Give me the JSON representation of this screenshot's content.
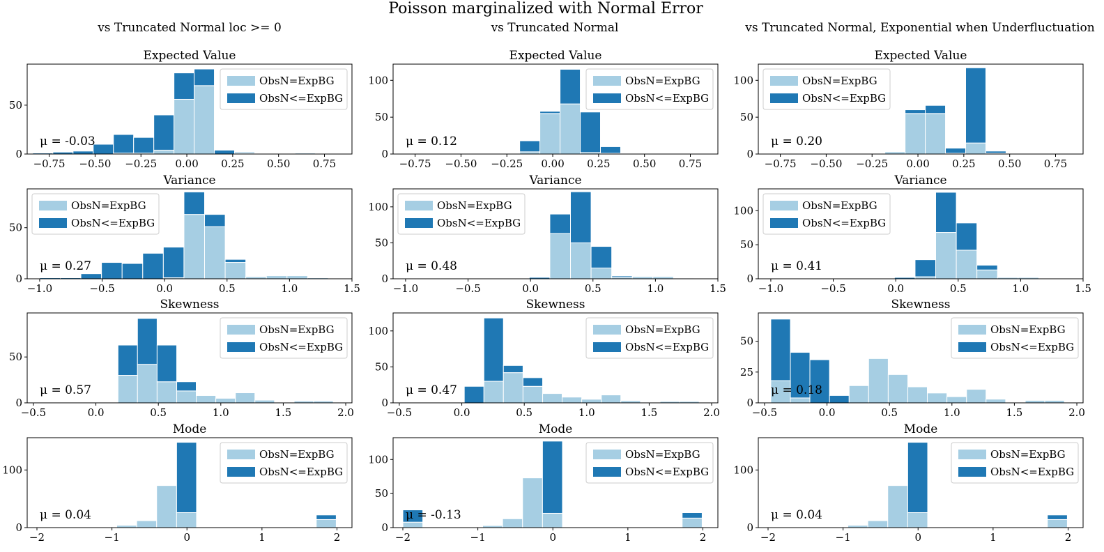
{
  "figure": {
    "suptitle": "Poisson marginalized with Normal Error",
    "column_titles": [
      "vs Truncated Normal loc >= 0",
      "vs Truncated Normal",
      "vs Truncated Normal, Exponential when Underfluctuation"
    ],
    "legend_labels": [
      "ObsN=ExpBG",
      "ObsN<=ExpBG"
    ],
    "colors": {
      "light": "#a6cee3",
      "dark": "#1f78b4"
    }
  },
  "chart_data": [
    {
      "type": "bar",
      "stacked": true,
      "title": "Expected Value",
      "mu_text": "μ = -0.03",
      "legend": "upper right",
      "xlim": [
        -0.87,
        0.9
      ],
      "ylim": [
        0,
        92
      ],
      "xticks": [
        -0.75,
        -0.5,
        -0.25,
        0,
        0.25,
        0.5,
        0.75
      ],
      "xtick_labels": [
        "−0.75",
        "−0.50",
        "−0.25",
        "0.00",
        "0.25",
        "0.50",
        "0.75"
      ],
      "yticks": [
        0,
        50
      ],
      "bin_edges": [
        -0.84,
        -0.73,
        -0.62,
        -0.51,
        -0.4,
        -0.29,
        -0.18,
        -0.07,
        0.04,
        0.15,
        0.26,
        0.37,
        0.48,
        0.59,
        0.7,
        0.81
      ],
      "series": [
        {
          "name": "ObsN=ExpBG",
          "values": [
            0,
            0,
            0,
            0,
            1,
            1,
            4,
            56,
            70,
            0,
            1,
            0,
            0,
            1,
            0
          ]
        },
        {
          "name": "ObsN<=ExpBG",
          "values": [
            1,
            2,
            3,
            10,
            19,
            16,
            36,
            27,
            17,
            4,
            1,
            0,
            0,
            0,
            0
          ]
        }
      ]
    },
    {
      "type": "bar",
      "stacked": true,
      "title": "Expected Value",
      "mu_text": "μ = 0.12",
      "legend": "upper right",
      "xlim": [
        -0.87,
        0.9
      ],
      "ylim": [
        0,
        122
      ],
      "xticks": [
        -0.75,
        -0.5,
        -0.25,
        0,
        0.25,
        0.5,
        0.75
      ],
      "xtick_labels": [
        "−0.75",
        "−0.50",
        "−0.25",
        "0.00",
        "0.25",
        "0.50",
        "0.75"
      ],
      "yticks": [
        0,
        50,
        100
      ],
      "bin_edges": [
        -0.84,
        -0.73,
        -0.62,
        -0.51,
        -0.4,
        -0.29,
        -0.18,
        -0.07,
        0.04,
        0.15,
        0.26,
        0.37,
        0.48,
        0.59,
        0.7,
        0.81
      ],
      "series": [
        {
          "name": "ObsN=ExpBG",
          "values": [
            0,
            0,
            0,
            0,
            0,
            0,
            3,
            55,
            68,
            2,
            1,
            0,
            0,
            0,
            0
          ]
        },
        {
          "name": "ObsN<=ExpBG",
          "values": [
            0,
            0,
            0,
            0,
            0,
            0,
            15,
            3,
            47,
            55,
            9,
            0,
            0,
            0,
            0
          ]
        }
      ]
    },
    {
      "type": "bar",
      "stacked": true,
      "title": "Expected Value",
      "mu_text": "μ = 0.20",
      "legend": "upper left",
      "xlim": [
        -0.87,
        0.9
      ],
      "ylim": [
        0,
        122
      ],
      "xticks": [
        -0.75,
        -0.5,
        -0.25,
        0,
        0.25,
        0.5,
        0.75
      ],
      "xtick_labels": [
        "−0.75",
        "−0.50",
        "−0.25",
        "0.00",
        "0.25",
        "0.50",
        "0.75"
      ],
      "yticks": [
        0,
        50,
        100
      ],
      "bin_edges": [
        -0.84,
        -0.73,
        -0.62,
        -0.51,
        -0.4,
        -0.29,
        -0.18,
        -0.07,
        0.04,
        0.15,
        0.26,
        0.37,
        0.48,
        0.59,
        0.7,
        0.81
      ],
      "series": [
        {
          "name": "ObsN=ExpBG",
          "values": [
            0,
            0,
            0,
            0,
            0,
            0,
            3,
            55,
            55,
            1,
            15,
            1,
            0,
            0,
            0
          ]
        },
        {
          "name": "ObsN<=ExpBG",
          "values": [
            0,
            0,
            0,
            0,
            0,
            0,
            0,
            5,
            11,
            7,
            102,
            3,
            0,
            0,
            0
          ]
        }
      ]
    },
    {
      "type": "bar",
      "stacked": true,
      "title": "Variance",
      "mu_text": "μ = 0.27",
      "legend": "upper left",
      "xlim": [
        -1.1,
        1.5
      ],
      "ylim": [
        0,
        88
      ],
      "xticks": [
        -1.0,
        -0.5,
        0,
        0.5,
        1.0,
        1.5
      ],
      "xtick_labels": [
        "−1.0",
        "−0.5",
        "0.0",
        "0.5",
        "1.0",
        "1.5"
      ],
      "yticks": [
        0,
        50
      ],
      "bin_edges": [
        -1.0,
        -0.835,
        -0.67,
        -0.505,
        -0.34,
        -0.175,
        -0.01,
        0.155,
        0.32,
        0.485,
        0.65,
        0.815,
        0.98,
        1.145,
        1.31
      ],
      "series": [
        {
          "name": "ObsN=ExpBG",
          "values": [
            0,
            0,
            0,
            0,
            0,
            0,
            1,
            63,
            51,
            16,
            2,
            3,
            3,
            1
          ]
        },
        {
          "name": "ObsN<=ExpBG",
          "values": [
            1,
            1,
            5,
            16,
            15,
            25,
            30,
            22,
            12,
            3,
            0,
            0,
            0,
            0
          ]
        }
      ]
    },
    {
      "type": "bar",
      "stacked": true,
      "title": "Variance",
      "mu_text": "μ = 0.48",
      "legend": "upper left",
      "xlim": [
        -1.1,
        1.5
      ],
      "ylim": [
        0,
        125
      ],
      "xticks": [
        -1.0,
        -0.5,
        0,
        0.5,
        1.0,
        1.5
      ],
      "xtick_labels": [
        "−1.0",
        "−0.5",
        "0.0",
        "0.5",
        "1.0",
        "1.5"
      ],
      "yticks": [
        0,
        50,
        100
      ],
      "bin_edges": [
        -1.0,
        -0.835,
        -0.67,
        -0.505,
        -0.34,
        -0.175,
        -0.01,
        0.155,
        0.32,
        0.485,
        0.65,
        0.815,
        0.98,
        1.145,
        1.31
      ],
      "series": [
        {
          "name": "ObsN=ExpBG",
          "values": [
            0,
            0,
            0,
            0,
            0,
            0,
            0,
            63,
            50,
            15,
            2,
            3,
            3,
            1
          ]
        },
        {
          "name": "ObsN<=ExpBG",
          "values": [
            0,
            0,
            0,
            0,
            0,
            0,
            2,
            27,
            71,
            30,
            2,
            0,
            0,
            0
          ]
        }
      ]
    },
    {
      "type": "bar",
      "stacked": true,
      "title": "Variance",
      "mu_text": "μ = 0.41",
      "legend": "upper left",
      "xlim": [
        -1.1,
        1.5
      ],
      "ylim": [
        0,
        132
      ],
      "xticks": [
        -1.0,
        -0.5,
        0,
        0.5,
        1.0,
        1.5
      ],
      "xtick_labels": [
        "−1.0",
        "−0.5",
        "0.0",
        "0.5",
        "1.0",
        "1.5"
      ],
      "yticks": [
        0,
        50,
        100
      ],
      "bin_edges": [
        -1.0,
        -0.835,
        -0.67,
        -0.505,
        -0.34,
        -0.175,
        -0.01,
        0.155,
        0.32,
        0.485,
        0.65,
        0.815,
        0.98,
        1.145,
        1.31
      ],
      "series": [
        {
          "name": "ObsN=ExpBG",
          "values": [
            0,
            0,
            0,
            0,
            0,
            0,
            0,
            3,
            68,
            42,
            13,
            2,
            2,
            0
          ]
        },
        {
          "name": "ObsN<=ExpBG",
          "values": [
            0,
            0,
            0,
            0,
            0,
            0,
            2,
            25,
            59,
            40,
            7,
            0,
            0,
            0
          ]
        }
      ]
    },
    {
      "type": "bar",
      "stacked": true,
      "title": "Skewness",
      "mu_text": "μ = 0.57",
      "legend": "upper right",
      "xlim": [
        -0.55,
        2.05
      ],
      "ylim": [
        0,
        98
      ],
      "xticks": [
        -0.5,
        0,
        0.5,
        1.0,
        1.5,
        2.0
      ],
      "xtick_labels": [
        "−0.5",
        "0.0",
        "0.5",
        "1.0",
        "1.5",
        "2.0"
      ],
      "yticks": [
        0,
        50
      ],
      "bin_edges": [
        -0.45,
        -0.293,
        -0.137,
        0.02,
        0.177,
        0.333,
        0.49,
        0.647,
        0.803,
        0.96,
        1.117,
        1.273,
        1.43,
        1.587,
        1.743,
        1.9
      ],
      "series": [
        {
          "name": "ObsN=ExpBG",
          "values": [
            0,
            0,
            0,
            0,
            30,
            42,
            23,
            13,
            8,
            5,
            11,
            3,
            0,
            2,
            2
          ]
        },
        {
          "name": "ObsN<=ExpBG",
          "values": [
            0,
            0,
            0,
            0,
            33,
            50,
            40,
            10,
            0,
            0,
            0,
            0,
            0,
            0,
            0
          ]
        }
      ]
    },
    {
      "type": "bar",
      "stacked": true,
      "title": "Skewness",
      "mu_text": "μ = 0.47",
      "legend": "upper right",
      "xlim": [
        -0.55,
        2.05
      ],
      "ylim": [
        0,
        125
      ],
      "xticks": [
        -0.5,
        0,
        0.5,
        1.0,
        1.5,
        2.0
      ],
      "xtick_labels": [
        "−0.5",
        "0.0",
        "0.5",
        "1.0",
        "1.5",
        "2.0"
      ],
      "yticks": [
        0,
        50,
        100
      ],
      "bin_edges": [
        -0.45,
        -0.293,
        -0.137,
        0.02,
        0.177,
        0.333,
        0.49,
        0.647,
        0.803,
        0.96,
        1.117,
        1.273,
        1.43,
        1.587,
        1.743,
        1.9
      ],
      "series": [
        {
          "name": "ObsN=ExpBG",
          "values": [
            0,
            0,
            0,
            0,
            30,
            42,
            23,
            13,
            8,
            5,
            11,
            3,
            0,
            2,
            2
          ]
        },
        {
          "name": "ObsN<=ExpBG",
          "values": [
            0,
            0,
            0,
            23,
            88,
            10,
            12,
            0,
            0,
            0,
            0,
            0,
            0,
            0,
            0
          ]
        }
      ]
    },
    {
      "type": "bar",
      "stacked": true,
      "title": "Skewness",
      "mu_text": "μ = 0.18",
      "legend": "upper right",
      "xlim": [
        -0.55,
        2.05
      ],
      "ylim": [
        0,
        73
      ],
      "xticks": [
        -0.5,
        0,
        0.5,
        1.0,
        1.5,
        2.0
      ],
      "xtick_labels": [
        "−0.5",
        "0.0",
        "0.5",
        "1.0",
        "1.5",
        "2.0"
      ],
      "yticks": [
        0,
        25,
        50
      ],
      "bin_edges": [
        -0.45,
        -0.293,
        -0.137,
        0.02,
        0.177,
        0.333,
        0.49,
        0.647,
        0.803,
        0.96,
        1.117,
        1.273,
        1.43,
        1.587,
        1.743,
        1.9
      ],
      "series": [
        {
          "name": "ObsN=ExpBG",
          "values": [
            18,
            4,
            0,
            0,
            14,
            36,
            23,
            13,
            8,
            5,
            11,
            3,
            0,
            2,
            2
          ]
        },
        {
          "name": "ObsN<=ExpBG",
          "values": [
            50,
            37,
            35,
            6,
            0,
            0,
            0,
            0,
            0,
            0,
            0,
            0,
            0,
            0,
            0
          ]
        }
      ]
    },
    {
      "type": "bar",
      "stacked": true,
      "title": "Mode",
      "mu_text": "μ = 0.04",
      "legend": "upper right",
      "xlim": [
        -2.13,
        2.2
      ],
      "ylim": [
        0,
        156
      ],
      "xticks": [
        -2,
        -1,
        0,
        1,
        2
      ],
      "xtick_labels": [
        "−2",
        "−1",
        "0",
        "1",
        "2"
      ],
      "yticks": [
        0,
        100
      ],
      "bin_edges": [
        -2.0,
        -1.734,
        -1.468,
        -1.202,
        -0.936,
        -0.67,
        -0.404,
        -0.138,
        0.128,
        0.394,
        0.66,
        0.926,
        1.192,
        1.458,
        1.724,
        1.99
      ],
      "series": [
        {
          "name": "ObsN=ExpBG",
          "values": [
            0,
            0,
            0,
            1,
            4,
            12,
            73,
            26,
            1,
            0,
            0,
            0,
            0,
            0,
            14
          ]
        },
        {
          "name": "ObsN<=ExpBG",
          "values": [
            0,
            0,
            0,
            0,
            0,
            0,
            0,
            122,
            0,
            0,
            0,
            0,
            0,
            0,
            8
          ]
        }
      ]
    },
    {
      "type": "bar",
      "stacked": true,
      "title": "Mode",
      "mu_text": "μ = -0.13",
      "legend": "upper right",
      "xlim": [
        -2.13,
        2.2
      ],
      "ylim": [
        0,
        132
      ],
      "xticks": [
        -2,
        -1,
        0,
        1,
        2
      ],
      "xtick_labels": [
        "−2",
        "−1",
        "0",
        "1",
        "2"
      ],
      "yticks": [
        0,
        50,
        100
      ],
      "bin_edges": [
        -2.0,
        -1.734,
        -1.468,
        -1.202,
        -0.936,
        -0.67,
        -0.404,
        -0.138,
        0.128,
        0.394,
        0.66,
        0.926,
        1.192,
        1.458,
        1.724,
        1.99
      ],
      "series": [
        {
          "name": "ObsN=ExpBG",
          "values": [
            8,
            0,
            0,
            1,
            3,
            13,
            73,
            21,
            1,
            0,
            0,
            0,
            0,
            0,
            14
          ]
        },
        {
          "name": "ObsN<=ExpBG",
          "values": [
            18,
            0,
            0,
            0,
            0,
            0,
            0,
            106,
            0,
            0,
            0,
            0,
            0,
            0,
            8
          ]
        }
      ]
    },
    {
      "type": "bar",
      "stacked": true,
      "title": "Mode",
      "mu_text": "μ = 0.04",
      "legend": "upper right",
      "xlim": [
        -2.13,
        2.2
      ],
      "ylim": [
        0,
        156
      ],
      "xticks": [
        -2,
        -1,
        0,
        1,
        2
      ],
      "xtick_labels": [
        "−2",
        "−1",
        "0",
        "1",
        "2"
      ],
      "yticks": [
        0,
        100
      ],
      "bin_edges": [
        -2.0,
        -1.734,
        -1.468,
        -1.202,
        -0.936,
        -0.67,
        -0.404,
        -0.138,
        0.128,
        0.394,
        0.66,
        0.926,
        1.192,
        1.458,
        1.724,
        1.99
      ],
      "series": [
        {
          "name": "ObsN=ExpBG",
          "values": [
            0,
            0,
            0,
            1,
            4,
            12,
            73,
            26,
            1,
            0,
            0,
            0,
            0,
            0,
            14
          ]
        },
        {
          "name": "ObsN<=ExpBG",
          "values": [
            0,
            0,
            0,
            0,
            0,
            0,
            0,
            122,
            0,
            0,
            0,
            0,
            0,
            0,
            8
          ]
        }
      ]
    }
  ]
}
